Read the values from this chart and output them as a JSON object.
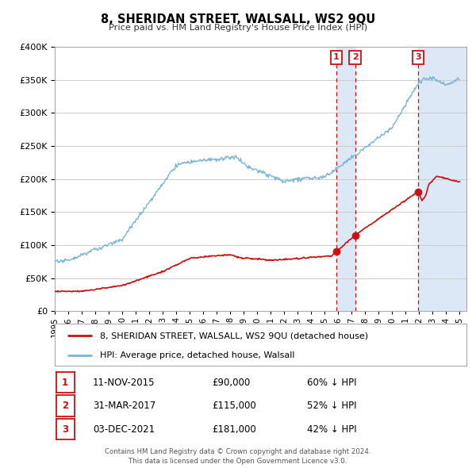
{
  "title": "8, SHERIDAN STREET, WALSALL, WS2 9QU",
  "subtitle": "Price paid vs. HM Land Registry's House Price Index (HPI)",
  "ylim": [
    0,
    400000
  ],
  "yticks": [
    0,
    50000,
    100000,
    150000,
    200000,
    250000,
    300000,
    350000,
    400000
  ],
  "xlim_start": 1995.0,
  "xlim_end": 2025.5,
  "hpi_color": "#7ab4d8",
  "price_color": "#cc1111",
  "background_color": "#ffffff",
  "grid_color": "#cccccc",
  "sale_dates_num": [
    2015.865,
    2017.247,
    2021.923
  ],
  "sale_prices": [
    90000,
    115000,
    181000
  ],
  "sale_labels": [
    "1",
    "2",
    "3"
  ],
  "sale_hpi_pct": [
    "60% ↓ HPI",
    "52% ↓ HPI",
    "42% ↓ HPI"
  ],
  "sale_date_strs": [
    "11-NOV-2015",
    "31-MAR-2017",
    "03-DEC-2021"
  ],
  "sale_price_strs": [
    "£90,000",
    "£115,000",
    "£181,000"
  ],
  "shaded_region1_start": 2015.865,
  "shaded_region1_end": 2017.247,
  "shaded_region2_start": 2021.923,
  "shaded_region2_end": 2025.5,
  "legend_label_price": "8, SHERIDAN STREET, WALSALL, WS2 9QU (detached house)",
  "legend_label_hpi": "HPI: Average price, detached house, Walsall",
  "footer_line1": "Contains HM Land Registry data © Crown copyright and database right 2024.",
  "footer_line2": "This data is licensed under the Open Government Licence v3.0."
}
